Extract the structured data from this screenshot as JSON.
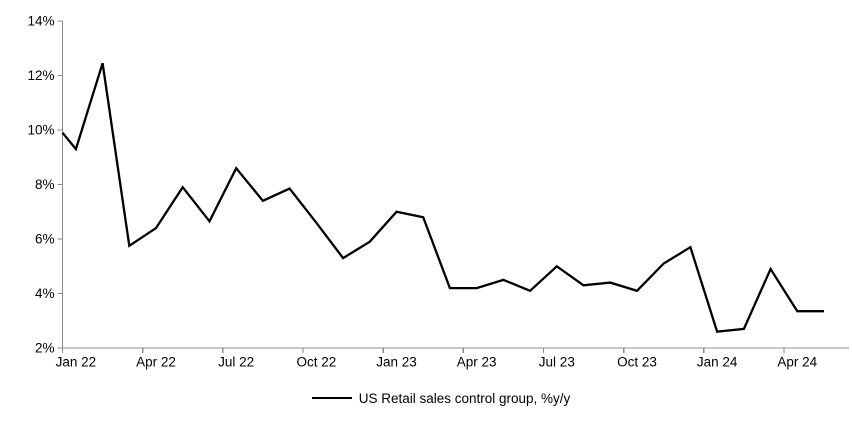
{
  "chart_data": {
    "type": "line",
    "title": "",
    "xlabel": "",
    "ylabel": "",
    "ylim": [
      2,
      14
    ],
    "y_tick_step": 2,
    "y_tick_labels": [
      "2%",
      "4%",
      "6%",
      "8%",
      "10%",
      "12%",
      "14%"
    ],
    "x_tick_labels": [
      "Jan 22",
      "Apr 22",
      "Jul 22",
      "Oct 22",
      "Jan 23",
      "Apr 23",
      "Jul 23",
      "Oct 23",
      "Jan 24",
      "Apr 24"
    ],
    "x_tick_month_indices": [
      0,
      3,
      6,
      9,
      12,
      15,
      18,
      21,
      24,
      27
    ],
    "grid": "off",
    "legend_position": "bottom-center",
    "axis_color": "#8c8c8c",
    "background_color": "#ffffff",
    "series": [
      {
        "name": "US Retail sales control group, %y/y",
        "color": "#000000",
        "months": [
          "Jan 22",
          "Feb 22",
          "Mar 22",
          "Apr 22",
          "May 22",
          "Jun 22",
          "Jul 22",
          "Aug 22",
          "Sep 22",
          "Oct 22",
          "Nov 22",
          "Dec 22",
          "Jan 23",
          "Feb 23",
          "Mar 23",
          "Apr 23",
          "May 23",
          "Jun 23",
          "Jul 23",
          "Aug 23",
          "Sep 23",
          "Oct 23",
          "Nov 23",
          "Dec 23",
          "Jan 24",
          "Feb 24",
          "Mar 24",
          "Apr 24",
          "May 24"
        ],
        "values": [
          9.3,
          12.45,
          5.75,
          6.4,
          7.9,
          6.65,
          8.6,
          7.4,
          7.85,
          6.6,
          5.3,
          5.9,
          7.0,
          6.8,
          4.2,
          4.2,
          4.5,
          4.1,
          5.0,
          4.3,
          4.4,
          4.1,
          5.1,
          5.7,
          2.6,
          2.7,
          4.9,
          3.35,
          3.35
        ],
        "left_edge_entry_value": 9.9
      }
    ],
    "legend": {
      "label": "US Retail sales control group, %y/y"
    }
  }
}
